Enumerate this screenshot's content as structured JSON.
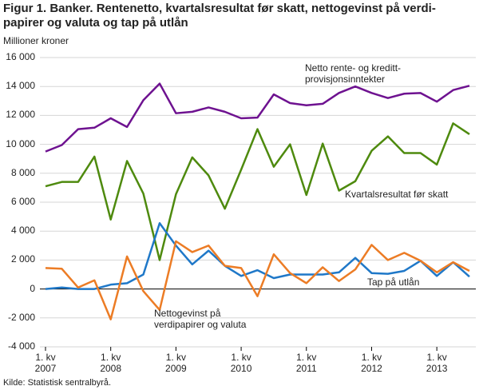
{
  "chart_data": {
    "type": "line",
    "title": "Figur 1. Banker. Rentenetto, kvartalsresultat før skatt, nettogevinst på verdi-\npapirer og valuta og tap på utlån",
    "y_label": "Millioner kroner",
    "source": "Kilde: Statistisk sentralbyrå.",
    "categories": [
      "1. kv\n2007",
      null,
      null,
      null,
      "1. kv\n2008",
      null,
      null,
      null,
      "1. kv\n2009",
      null,
      null,
      null,
      "1. kv\n2010",
      null,
      null,
      null,
      "1. kv\n2011",
      null,
      null,
      null,
      "1. kv\n2012",
      null,
      null,
      null,
      "1. kv\n2013",
      null,
      null
    ],
    "ylim": [
      -4000,
      16000
    ],
    "yticks": [
      {
        "value": -4000,
        "label": "-4 000"
      },
      {
        "value": -2000,
        "label": "-2 000"
      },
      0,
      {
        "value": 2000,
        "label": "2 000"
      },
      {
        "value": 4000,
        "label": "4 000"
      },
      {
        "value": 6000,
        "label": "6 000"
      },
      {
        "value": 8000,
        "label": "8 000"
      },
      {
        "value": 10000,
        "label": "10 000"
      },
      {
        "value": 12000,
        "label": "12 000"
      },
      {
        "value": 14000,
        "label": "14 000"
      },
      {
        "value": 16000,
        "label": "16 000"
      }
    ],
    "grid": true,
    "series": [
      {
        "name": "Netto rente- og kreditt-\nprovisjonsinntekter",
        "color": "#6e1290",
        "values": [
          9500,
          9950,
          11050,
          11150,
          11800,
          11200,
          13050,
          14200,
          12150,
          12250,
          12550,
          12250,
          11800,
          11850,
          13450,
          12850,
          12700,
          12800,
          13550,
          14000,
          13550,
          13200,
          13500,
          13550,
          12950,
          13750,
          14050
        ]
      },
      {
        "name": "Kvartalsresultat før skatt",
        "color": "#4e8a0e",
        "values": [
          7100,
          7400,
          7400,
          9150,
          4800,
          8850,
          6600,
          2000,
          6550,
          9100,
          7850,
          5550,
          8250,
          11050,
          8450,
          10000,
          6500,
          10050,
          6800,
          7450,
          9550,
          10550,
          9400,
          9400,
          8600,
          11450,
          10700
        ]
      },
      {
        "name": "Tap på utlån",
        "color": "#1f78c8",
        "values": [
          0,
          100,
          0,
          0,
          300,
          400,
          1000,
          4550,
          3000,
          1700,
          2650,
          1600,
          900,
          1300,
          750,
          1000,
          1000,
          1000,
          1150,
          2150,
          1100,
          1050,
          1250,
          1950,
          900,
          1850,
          850
        ]
      },
      {
        "name": "Nettogevinst på\nverdipapirer og valuta",
        "color": "#ec7c25",
        "values": [
          1450,
          1400,
          100,
          600,
          -2100,
          2250,
          -150,
          -1450,
          3300,
          2550,
          3000,
          1600,
          1450,
          -500,
          2400,
          1100,
          400,
          1500,
          550,
          1350,
          3050,
          2000,
          2500,
          1950,
          1150,
          1850,
          1250
        ]
      }
    ]
  }
}
